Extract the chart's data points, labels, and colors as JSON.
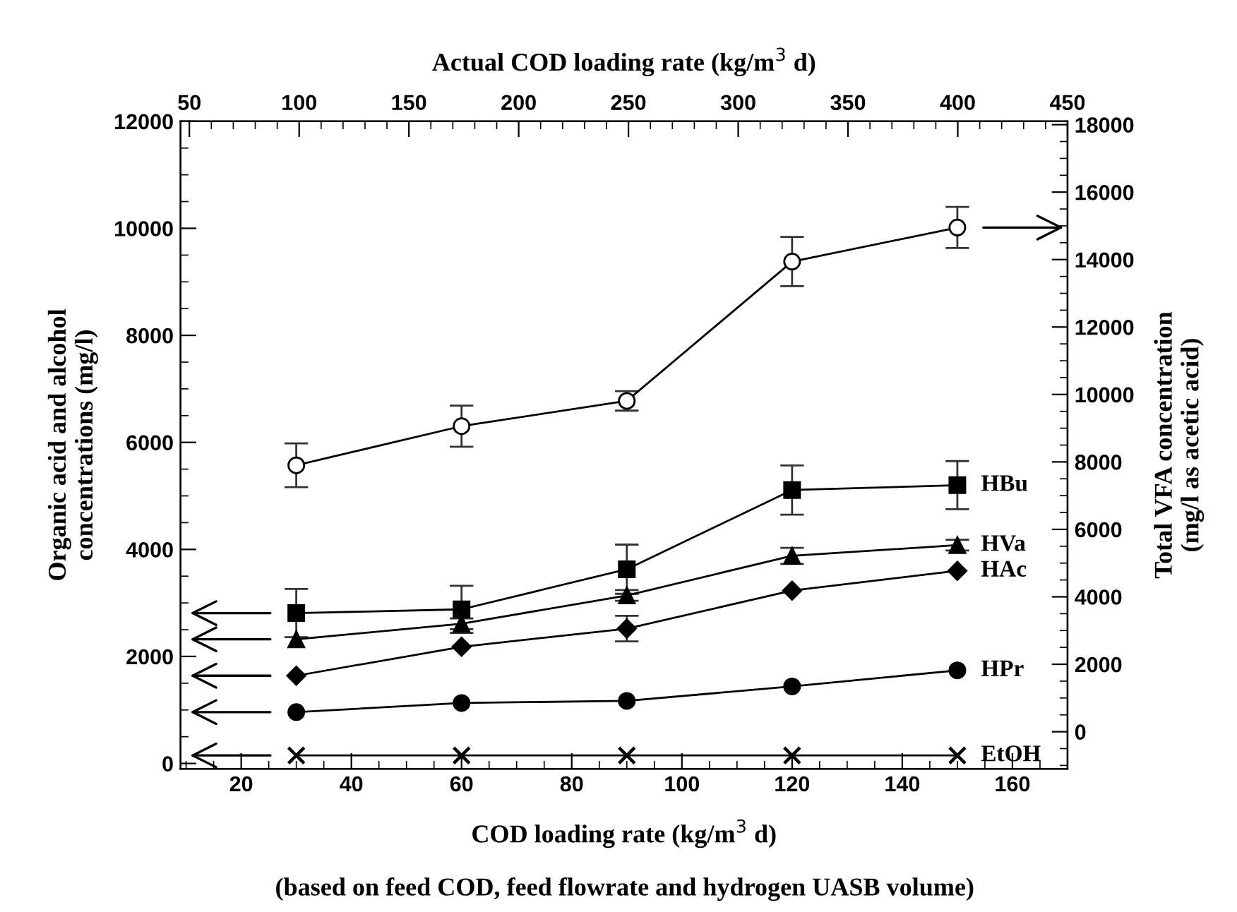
{
  "chart_data": {
    "type": "line",
    "xlabel": "COD loading rate (kg/m$^{3}$ d)",
    "x2label": "Actual COD loading rate (kg/m$^{3}$ d)",
    "ylabel": "Organic acid and alcohol\nconcentrations (mg/l)",
    "y2label": "Total VFA concentration\n(mg/l as acetic acid)",
    "annotations": [
      "(based on feed COD, feed flowrate and hydrogen UASB volume)"
    ],
    "x": [
      30,
      60,
      90,
      120,
      150
    ],
    "xlim": [
      9,
      170
    ],
    "xticks": [
      20,
      40,
      60,
      80,
      100,
      120,
      140,
      160
    ],
    "x2lim": [
      46,
      450
    ],
    "x2ticks": [
      50,
      100,
      150,
      200,
      250,
      300,
      350,
      400,
      450
    ],
    "ylim": [
      -100,
      12000
    ],
    "yticks": [
      0,
      2000,
      4000,
      6000,
      8000,
      10000,
      12000
    ],
    "y2lim": [
      -1100,
      18100
    ],
    "y2ticks": [
      0,
      2000,
      4000,
      6000,
      8000,
      10000,
      12000,
      14000,
      16000,
      18000
    ],
    "grid": false,
    "legend": "right",
    "line_style": "solid",
    "series": [
      {
        "name": "HBu",
        "color": "#000000",
        "marker": "square",
        "values": [
          2810,
          2880,
          3630,
          5110,
          5200
        ],
        "errors": [
          450,
          440,
          460,
          460,
          450
        ]
      },
      {
        "name": "HVa",
        "color": "#000000",
        "marker": "triangle",
        "values": [
          2320,
          2610,
          3140,
          3880,
          4080
        ],
        "errors": [
          null,
          100,
          100,
          150,
          100
        ]
      },
      {
        "name": "HAc",
        "color": "#000000",
        "marker": "diamond",
        "values": [
          1640,
          2180,
          2520,
          3230,
          3600
        ],
        "errors": [
          null,
          null,
          240,
          null,
          null
        ]
      },
      {
        "name": "HPr",
        "color": "#000000",
        "marker": "circle",
        "values": [
          960,
          1130,
          1170,
          1440,
          1740
        ]
      },
      {
        "name": "EtOH",
        "color": "#000000",
        "marker": "cross",
        "values": [
          150,
          150,
          150,
          150,
          150
        ]
      },
      {
        "color": "#000000",
        "marker": "circle",
        "axis": "y2",
        "values": [
          7900,
          9060,
          9810,
          13940,
          14950
        ],
        "errors": [
          650,
          610,
          290,
          730,
          610
        ]
      }
    ]
  }
}
